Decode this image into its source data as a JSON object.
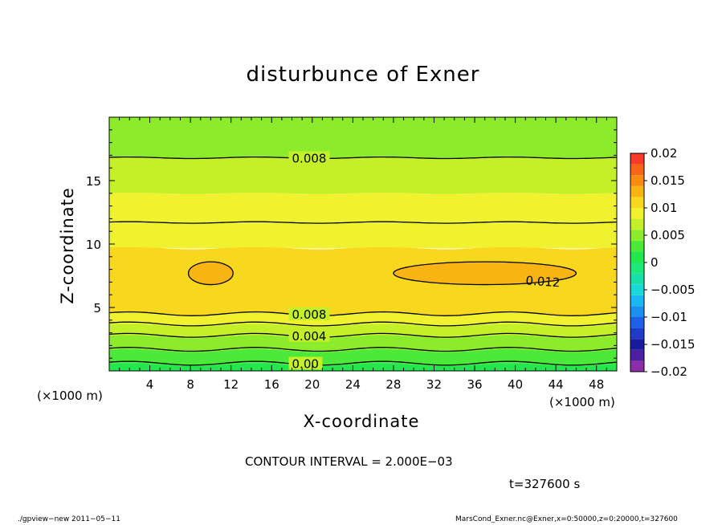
{
  "chart_data": {
    "type": "heatmap",
    "title": "disturbunce of Exner",
    "xlabel": "X-coordinate",
    "ylabel": "Z-coordinate",
    "x_unit_label": "(×1000 m)",
    "xlim": [
      0,
      50
    ],
    "ylim": [
      0,
      20
    ],
    "x_ticks": [
      4,
      8,
      12,
      16,
      20,
      24,
      28,
      32,
      36,
      40,
      44,
      48
    ],
    "y_ticks": [
      5,
      10,
      15
    ],
    "colorbar": {
      "levels": [
        -0.02,
        -0.018,
        -0.016,
        -0.014,
        -0.012,
        -0.01,
        -0.008,
        -0.006,
        -0.004,
        -0.002,
        0,
        0.002,
        0.004,
        0.006,
        0.008,
        0.01,
        0.012,
        0.014,
        0.016,
        0.018,
        0.02
      ],
      "tick_labels": [
        "0.02",
        "0.015",
        "0.01",
        "0.005",
        "0",
        "−0.005",
        "−0.01",
        "−0.015",
        "−0.02"
      ],
      "tick_values": [
        0.02,
        0.015,
        0.01,
        0.005,
        0,
        -0.005,
        -0.01,
        -0.015,
        -0.02
      ],
      "colors": [
        "#8c2ca8",
        "#4a1fa0",
        "#1a1a9c",
        "#1e3cc8",
        "#2060e8",
        "#1c90f0",
        "#19b8f0",
        "#18d8d8",
        "#18e0a8",
        "#1ee87a",
        "#22e84e",
        "#4ce83a",
        "#8cec2c",
        "#c4f02a",
        "#f0f230",
        "#f8d81e",
        "#f8b412",
        "#f88c10",
        "#f86418",
        "#f83a2a",
        "#f87878"
      ]
    },
    "bands": [
      {
        "value": 0.001,
        "z_bottom": 0.0,
        "z_top": 0.5
      },
      {
        "value": 0.003,
        "z_bottom": 0.5,
        "z_top": 1.6
      },
      {
        "value": 0.005,
        "z_bottom": 1.6,
        "z_top": 2.7
      },
      {
        "value": 0.007,
        "z_bottom": 2.7,
        "z_top": 3.6
      },
      {
        "value": 0.009,
        "z_bottom": 3.6,
        "z_top": 4.5
      },
      {
        "value": 0.011,
        "z_bottom": 4.5,
        "z_top": 9.7
      },
      {
        "value": 0.009,
        "z_bottom": 9.7,
        "z_top": 11.7
      },
      {
        "value": 0.009,
        "z_bottom": 11.7,
        "z_top": 14.0
      },
      {
        "value": 0.007,
        "z_bottom": 14.0,
        "z_top": 16.8
      },
      {
        "value": 0.005,
        "z_bottom": 16.8,
        "z_top": 20.0
      }
    ],
    "contours": [
      {
        "label": "0.00",
        "z": 0.6,
        "label_x": 18
      },
      {
        "label": "",
        "z": 1.7
      },
      {
        "label": "0.004",
        "z": 2.8,
        "label_x": 18
      },
      {
        "label": "",
        "z": 3.7
      },
      {
        "label": "0.008",
        "z": 4.5,
        "label_x": 18
      },
      {
        "label": "",
        "z": 11.7
      },
      {
        "label": "0.008",
        "z": 16.8,
        "label_x": 18
      }
    ],
    "closed_contours": [
      {
        "label": "",
        "cx": 10,
        "cz": 7.7,
        "rx": 2.2,
        "rz": 0.9
      },
      {
        "label": "0.012",
        "cx": 37,
        "cz": 7.7,
        "rx": 9,
        "rz": 0.9,
        "label_x": 41
      }
    ],
    "grid": false
  },
  "annotations": {
    "contour_interval": "CONTOUR INTERVAL = 2.000E−03",
    "time": "t=327600 s",
    "footer_left": "./gpview−new   2011−05−11",
    "footer_right": "MarsCond_Exner.nc@Exner,x=0:50000,z=0:20000,t=327600"
  }
}
